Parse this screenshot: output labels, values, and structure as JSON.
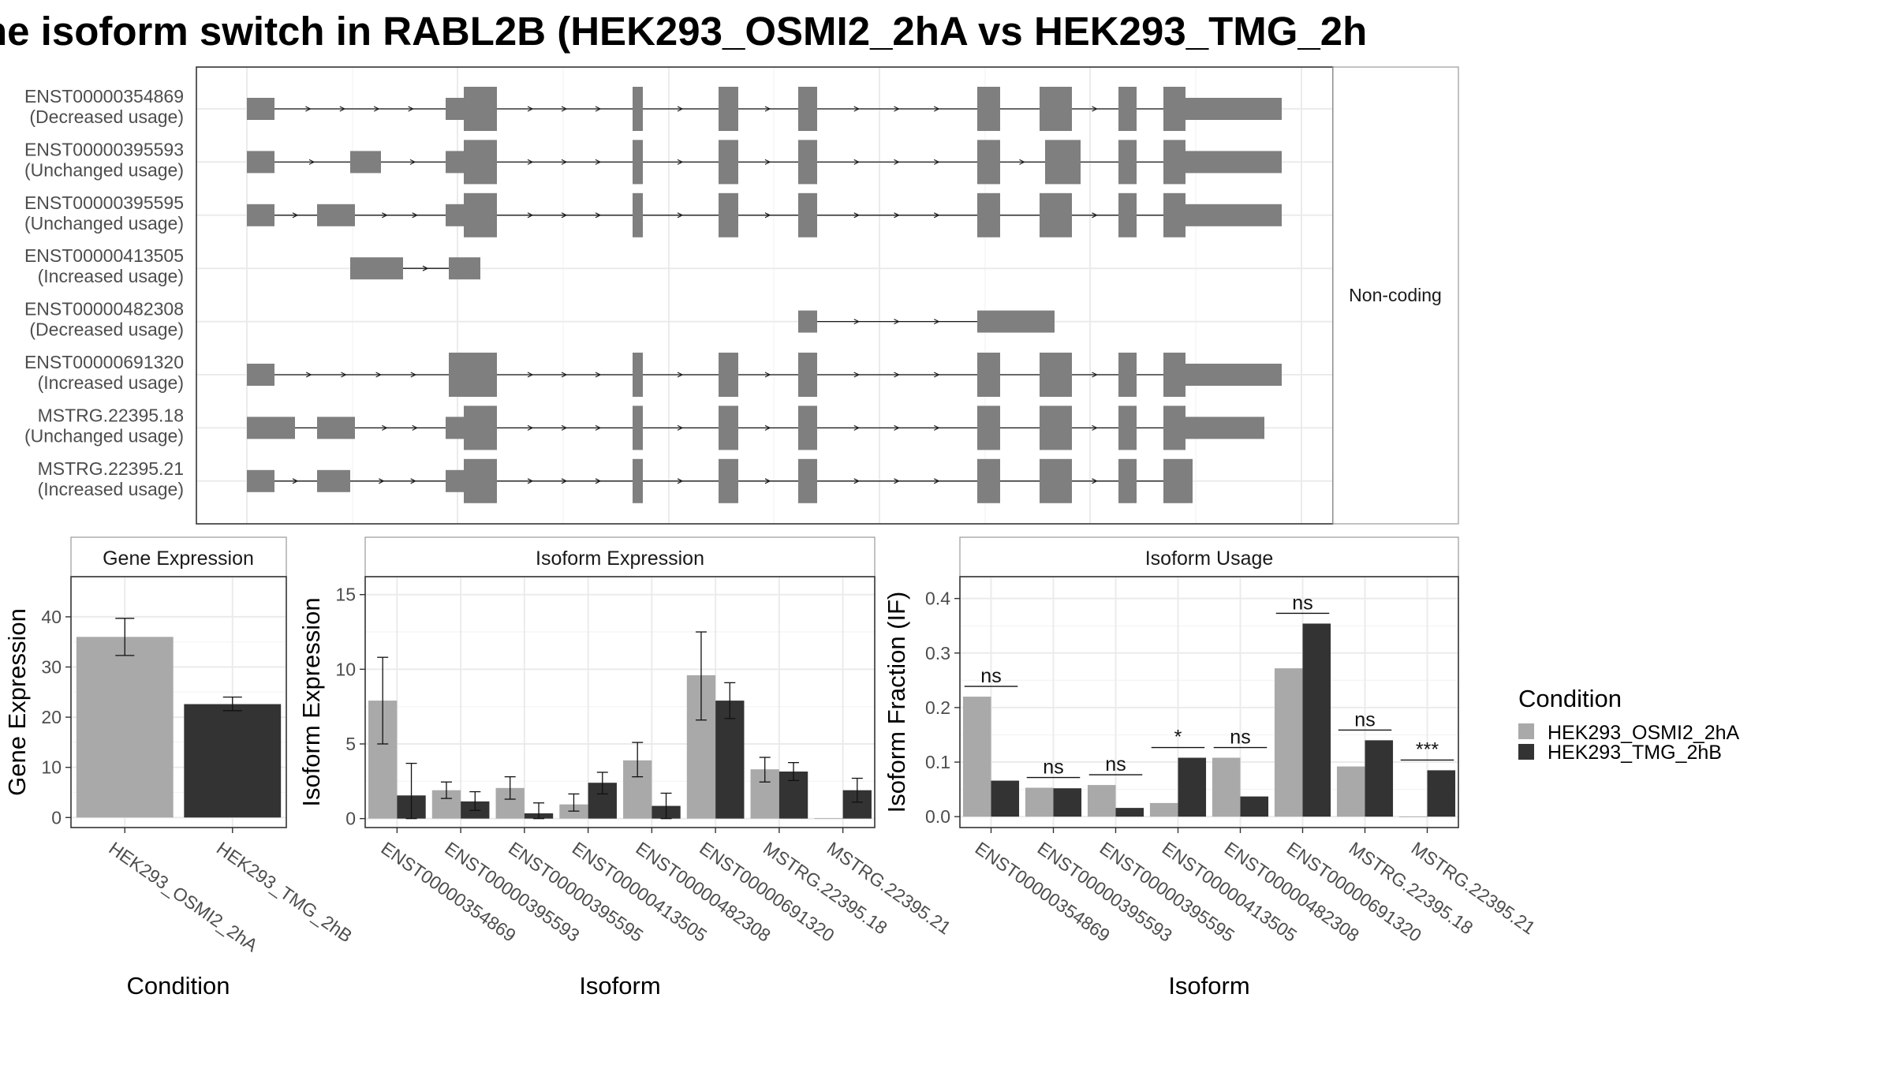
{
  "title": "ne isoform switch in RABL2B (HEK293_OSMI2_2hA vs HEK293_TMG_2h",
  "colors": {
    "osmi": "#a9a9a9",
    "tmg": "#333333",
    "exon": "#7f7f7f",
    "grid": "#ebebeb",
    "border": "#333333",
    "strip_border": "#9a9a9a",
    "label": "#4d4d4d"
  },
  "legend": {
    "title": "Condition",
    "items": [
      "HEK293_OSMI2_2hA",
      "HEK293_TMG_2hB"
    ]
  },
  "chart_data": [
    {
      "type": "gene-structure",
      "facet_label": "Non-coding",
      "transcripts": [
        {
          "id": "ENST00000354869",
          "note": "(Decreased usage)"
        },
        {
          "id": "ENST00000395593",
          "note": "(Unchanged usage)"
        },
        {
          "id": "ENST00000395595",
          "note": "(Unchanged usage)"
        },
        {
          "id": "ENST00000413505",
          "note": "(Increased usage)"
        },
        {
          "id": "ENST00000482308",
          "note": "(Decreased usage)"
        },
        {
          "id": "ENST00000691320",
          "note": "(Increased usage)"
        },
        {
          "id": "MSTRG.22395.18",
          "note": "(Unchanged usage)"
        },
        {
          "id": "MSTRG.22395.21",
          "note": "(Increased usage)"
        }
      ]
    },
    {
      "type": "bar",
      "title": "Gene Expression",
      "xlabel": "Condition",
      "ylabel": "Gene Expression",
      "categories": [
        "HEK293_OSMI2_2hA",
        "HEK293_TMG_2hB"
      ],
      "values": [
        36,
        22.6
      ],
      "error_low": [
        32.3,
        21.3
      ],
      "error_high": [
        39.7,
        24.0
      ],
      "ylim": [
        -2,
        48
      ],
      "yticks": [
        0,
        10,
        20,
        30,
        40
      ]
    },
    {
      "type": "bar",
      "title": "Isoform Expression",
      "xlabel": "Isoform",
      "ylabel": "Isoform Expression",
      "categories": [
        "ENST00000354869",
        "ENST00000395593",
        "ENST00000395595",
        "ENST00000413505",
        "ENST00000482308",
        "ENST00000691320",
        "MSTRG.22395.18",
        "MSTRG.22395.21"
      ],
      "series": [
        {
          "name": "HEK293_OSMI2_2hA",
          "values": [
            7.9,
            1.9,
            2.05,
            0.95,
            3.9,
            9.6,
            3.3,
            0.02
          ],
          "error_low": [
            5.0,
            1.35,
            1.3,
            0.5,
            2.8,
            6.6,
            2.45,
            0.0
          ],
          "error_high": [
            10.8,
            2.45,
            2.8,
            1.65,
            5.1,
            12.5,
            4.1,
            0.0
          ]
        },
        {
          "name": "HEK293_TMG_2hB",
          "values": [
            1.55,
            1.15,
            0.35,
            2.4,
            0.85,
            7.9,
            3.15,
            1.9
          ],
          "error_low": [
            0.0,
            0.55,
            0.0,
            1.65,
            0.0,
            6.7,
            2.55,
            1.1
          ],
          "error_high": [
            3.7,
            1.8,
            1.05,
            3.1,
            1.7,
            9.1,
            3.75,
            2.7
          ]
        }
      ],
      "ylim": [
        -0.6,
        16.2
      ],
      "yticks": [
        0,
        5,
        10,
        15
      ]
    },
    {
      "type": "bar",
      "title": "Isoform Usage",
      "xlabel": "Isoform",
      "ylabel": "Isoform Fraction (IF)",
      "categories": [
        "ENST00000354869",
        "ENST00000395593",
        "ENST00000395595",
        "ENST00000413505",
        "ENST00000482308",
        "ENST00000691320",
        "MSTRG.22395.18",
        "MSTRG.22395.21"
      ],
      "series": [
        {
          "name": "HEK293_OSMI2_2hA",
          "values": [
            0.22,
            0.053,
            0.058,
            0.025,
            0.108,
            0.272,
            0.092,
            0.0
          ]
        },
        {
          "name": "HEK293_TMG_2hB",
          "values": [
            0.066,
            0.052,
            0.016,
            0.108,
            0.037,
            0.354,
            0.14,
            0.085
          ]
        }
      ],
      "significance": [
        "ns",
        "ns",
        "ns",
        "*",
        "ns",
        "ns",
        "ns",
        "***"
      ],
      "ylim": [
        -0.02,
        0.44
      ],
      "yticks": [
        0.0,
        0.1,
        0.2,
        0.3,
        0.4
      ],
      "ytick_labels": [
        "0.0",
        "0.1",
        "0.2",
        "0.3",
        "0.4"
      ]
    }
  ]
}
